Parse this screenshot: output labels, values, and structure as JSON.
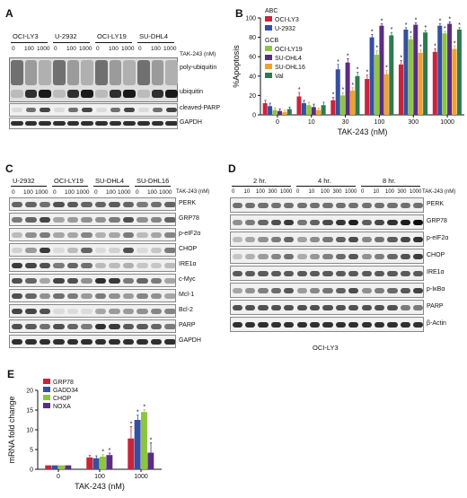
{
  "panel_labels": {
    "a": "A",
    "b": "B",
    "c": "C",
    "d": "D",
    "e": "E"
  },
  "panel_a": {
    "cell_lines": [
      "OCI-LY3",
      "U-2932",
      "OCI-LY19",
      "SU-DHL4"
    ],
    "doses": [
      "0",
      "100",
      "1000"
    ],
    "treatment_label": "TAK-243 (nM)",
    "rows": [
      "poly-ubiquitin",
      "ubiquitin",
      "cleaved-PARP",
      "GAPDH"
    ]
  },
  "panel_c": {
    "cell_lines": [
      "U-2932",
      "OCI-LY19",
      "SU-DHL4",
      "SU-DHL16"
    ],
    "doses": [
      "0",
      "100",
      "1000"
    ],
    "treatment_label": "TAK-243 (nM)",
    "rows": [
      "PERK",
      "GRP78",
      "p-eIF2α",
      "CHOP",
      "IRE1α",
      "c-Myc",
      "Mcl-1",
      "Bcl-2",
      "PARP",
      "GAPDH"
    ]
  },
  "panel_d": {
    "timepoints": [
      "2 hr.",
      "4 hr.",
      "8 hr."
    ],
    "doses": [
      "0",
      "10",
      "100",
      "300",
      "1000"
    ],
    "treatment_label": "TAK-243 (nM)",
    "rows": [
      "PERK",
      "GRP78",
      "p-eIF2α",
      "CHOP",
      "IRE1α",
      "p-IκBα",
      "PARP",
      "β-Actin"
    ],
    "cell_line": "OCI-LY3"
  },
  "chart_data": [
    {
      "type": "bar",
      "title": "",
      "xlabel": "TAK-243 (nM)",
      "ylabel": "%Apoptosis",
      "ylim": [
        0,
        100
      ],
      "yticks": [
        "0",
        "20",
        "40",
        "60",
        "80",
        "100"
      ],
      "categories": [
        "0",
        "10",
        "30",
        "100",
        "300",
        "1000"
      ],
      "legend_groups": [
        {
          "label": "ABC",
          "names": [
            "OCI-LY3",
            "U-2932"
          ]
        },
        {
          "label": "GCB",
          "names": [
            "OCI-LY19",
            "SU-DHL4",
            "SU-DHL16",
            "Val"
          ]
        }
      ],
      "legend_position": "top-left",
      "significance_marker": "*",
      "series": [
        {
          "name": "OCI-LY3",
          "color": "#c8243c",
          "values": [
            12,
            19,
            15,
            37,
            52,
            65
          ],
          "errors": [
            3,
            4,
            3,
            4,
            4,
            3
          ],
          "sig": [
            false,
            true,
            true,
            true,
            true,
            true
          ]
        },
        {
          "name": "U-2932",
          "color": "#3550a0",
          "values": [
            9,
            12,
            47,
            80,
            88,
            92
          ],
          "errors": [
            3,
            3,
            5,
            3,
            2,
            2
          ],
          "sig": [
            false,
            false,
            true,
            true,
            true,
            true
          ]
        },
        {
          "name": "OCI-LY19",
          "color": "#8cc63e",
          "values": [
            5,
            10,
            20,
            62,
            78,
            84
          ],
          "errors": [
            2,
            3,
            3,
            4,
            3,
            2
          ],
          "sig": [
            false,
            false,
            true,
            true,
            true,
            true
          ]
        },
        {
          "name": "SU-DHL4",
          "color": "#5a2d82",
          "values": [
            4,
            8,
            54,
            92,
            93,
            94
          ],
          "errors": [
            2,
            3,
            4,
            2,
            2,
            2
          ],
          "sig": [
            false,
            false,
            true,
            true,
            true,
            true
          ]
        },
        {
          "name": "SU-DHL16",
          "color": "#f2a12f",
          "values": [
            3,
            5,
            25,
            42,
            64,
            68
          ],
          "errors": [
            2,
            2,
            3,
            4,
            3,
            3
          ],
          "sig": [
            false,
            false,
            true,
            true,
            true,
            true
          ]
        },
        {
          "name": "Val",
          "color": "#2e7a4f",
          "values": [
            6,
            10,
            40,
            82,
            85,
            88
          ],
          "errors": [
            2,
            3,
            4,
            3,
            2,
            2
          ],
          "sig": [
            false,
            false,
            true,
            true,
            true,
            true
          ]
        }
      ]
    },
    {
      "type": "bar",
      "title": "",
      "xlabel": "TAK-243 (nM)",
      "ylabel": "mRNA fold change",
      "ylim": [
        0,
        20
      ],
      "yticks": [
        "0",
        "5",
        "10",
        "15",
        "20"
      ],
      "categories": [
        "0",
        "100",
        "1000"
      ],
      "legend_position": "top-left",
      "significance_marker": "*",
      "series": [
        {
          "name": "GRP78",
          "color": "#c8243c",
          "values": [
            1,
            3,
            7.8
          ],
          "errors": [
            0,
            0.5,
            3
          ],
          "sig": [
            false,
            false,
            true
          ]
        },
        {
          "name": "GADD34",
          "color": "#3550a0",
          "values": [
            1,
            2.8,
            12.5
          ],
          "errors": [
            0,
            0.6,
            1.2
          ],
          "sig": [
            false,
            false,
            true
          ]
        },
        {
          "name": "CHOP",
          "color": "#8cc63e",
          "values": [
            1,
            3.2,
            14.5
          ],
          "errors": [
            0,
            0.5,
            0.6
          ],
          "sig": [
            false,
            true,
            true
          ]
        },
        {
          "name": "NOXA",
          "color": "#5a2d82",
          "values": [
            1,
            3.6,
            4.2
          ],
          "errors": [
            0,
            0.5,
            2.5
          ],
          "sig": [
            false,
            true,
            true
          ]
        }
      ]
    }
  ]
}
